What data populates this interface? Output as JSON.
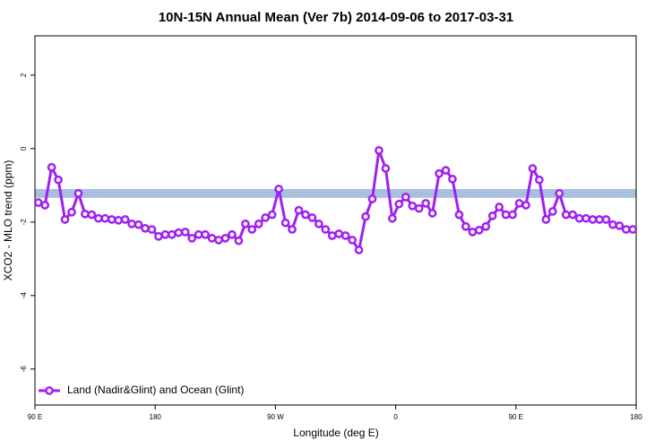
{
  "chart_data": {
    "type": "line",
    "title": "10N-15N Annual Mean (Ver 7b)   2014-09-06 to 2017-03-31",
    "x_label": "Longitude (deg E)",
    "y_label": "XCO2 - MLO trend (ppm)",
    "xlim": [
      90,
      540
    ],
    "ylim": [
      -6.98,
      3.07
    ],
    "xticks": [
      {
        "value": 90,
        "label": "90 E"
      },
      180,
      {
        "value": 270,
        "label": "90 W"
      },
      {
        "value": 360,
        "label": "0"
      },
      {
        "value": 450,
        "label": "90 E"
      },
      {
        "value": 540,
        "label": "180"
      }
    ],
    "yticks": [
      -6,
      -4,
      -2,
      0,
      2
    ],
    "band": [
      -1.34,
      -1.1
    ],
    "band_color": "#a8bfe0",
    "legend": "bottom-left",
    "x": [
      92.5,
      97.5,
      102.5,
      107.5,
      112.5,
      117.5,
      122.5,
      127.5,
      132.5,
      137.5,
      142.5,
      147.5,
      152.5,
      157.5,
      162.5,
      167.5,
      172.5,
      177.5,
      182.5,
      187.5,
      192.5,
      197.5,
      202.5,
      207.5,
      212.5,
      217.5,
      222.5,
      227.5,
      232.5,
      237.5,
      242.5,
      247.5,
      252.5,
      257.5,
      262.5,
      267.5,
      272.5,
      277.5,
      282.5,
      287.5,
      292.5,
      297.5,
      302.5,
      307.5,
      312.5,
      317.5,
      322.5,
      327.5,
      332.5,
      337.5,
      342.5,
      347.5,
      352.5,
      357.5,
      362.5,
      367.5,
      372.5,
      377.5,
      382.5,
      387.5,
      392.5,
      397.5,
      402.5,
      407.5,
      412.5,
      417.5,
      422.5,
      427.5,
      432.5,
      437.5,
      442.5,
      447.5,
      452.5,
      457.5,
      462.5,
      467.5,
      472.5,
      477.5,
      482.5,
      487.5,
      492.5,
      497.5,
      502.5,
      507.5,
      512.5,
      517.5,
      522.5,
      527.5,
      532.5,
      537.5
    ],
    "series": [
      {
        "name": "Land (Nadir&Glint) and Ocean (Glint)",
        "color": "#a020f0",
        "values": [
          -1.47,
          -1.54,
          -0.51,
          -0.85,
          -1.93,
          -1.73,
          -1.22,
          -1.78,
          -1.8,
          -1.9,
          -1.9,
          -1.93,
          -1.95,
          -1.93,
          -2.05,
          -2.07,
          -2.17,
          -2.2,
          -2.39,
          -2.34,
          -2.34,
          -2.29,
          -2.27,
          -2.44,
          -2.34,
          -2.34,
          -2.44,
          -2.49,
          -2.44,
          -2.34,
          -2.51,
          -2.05,
          -2.2,
          -2.05,
          -1.88,
          -1.8,
          -1.1,
          -2.02,
          -2.2,
          -1.68,
          -1.8,
          -1.88,
          -2.05,
          -2.2,
          -2.37,
          -2.32,
          -2.37,
          -2.49,
          -2.76,
          -1.85,
          -1.37,
          -0.05,
          -0.54,
          -1.9,
          -1.51,
          -1.32,
          -1.56,
          -1.63,
          -1.49,
          -1.76,
          -0.68,
          -0.59,
          -0.83,
          -1.8,
          -2.12,
          -2.27,
          -2.22,
          -2.12,
          -1.83,
          -1.59,
          -1.8,
          -1.8,
          -1.49,
          -1.54,
          -0.54,
          -0.85,
          -1.93,
          -1.71,
          -1.22,
          -1.8,
          -1.8,
          -1.9,
          -1.9,
          -1.93,
          -1.93,
          -1.93,
          -2.07,
          -2.1,
          -2.2,
          -2.2
        ]
      }
    ]
  }
}
